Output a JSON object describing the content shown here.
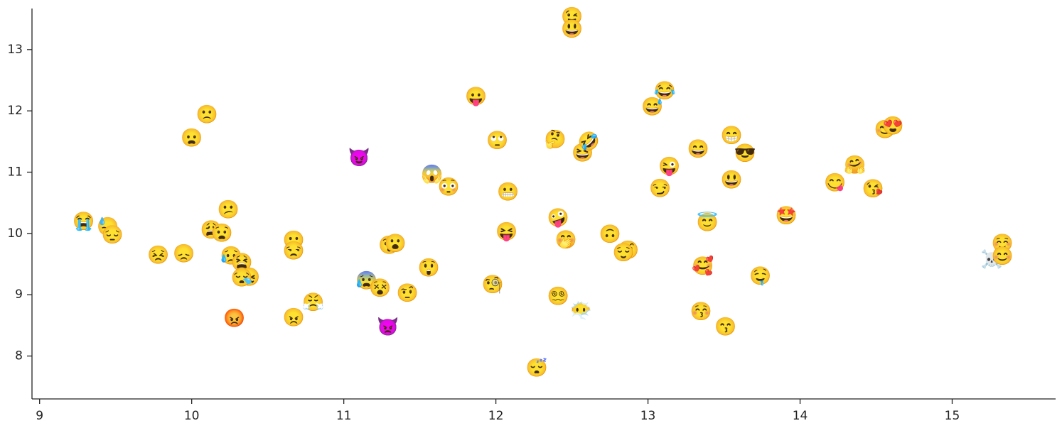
{
  "chart_data": {
    "type": "scatter",
    "title": "",
    "xlabel": "",
    "ylabel": "",
    "xlim": [
      8.95,
      15.68
    ],
    "ylim": [
      7.3,
      13.67
    ],
    "x_ticks": [
      9,
      10,
      11,
      12,
      13,
      14,
      15
    ],
    "y_ticks": [
      8,
      9,
      10,
      11,
      12,
      13
    ],
    "grid": false,
    "legend": "none",
    "axis_color": "#222222",
    "points": [
      {
        "x": 9.29,
        "y": 10.19,
        "emoji": "😭"
      },
      {
        "x": 9.45,
        "y": 10.1,
        "emoji": "😓"
      },
      {
        "x": 9.48,
        "y": 9.97,
        "emoji": "😔"
      },
      {
        "x": 9.78,
        "y": 9.64,
        "emoji": "😣"
      },
      {
        "x": 9.95,
        "y": 9.66,
        "emoji": "😞"
      },
      {
        "x": 10.0,
        "y": 11.55,
        "emoji": "😦"
      },
      {
        "x": 10.1,
        "y": 11.93,
        "emoji": "🙁"
      },
      {
        "x": 10.13,
        "y": 10.05,
        "emoji": "😩"
      },
      {
        "x": 10.2,
        "y": 10.0,
        "emoji": "😧"
      },
      {
        "x": 10.24,
        "y": 10.38,
        "emoji": "😕"
      },
      {
        "x": 10.26,
        "y": 9.63,
        "emoji": "😥"
      },
      {
        "x": 10.33,
        "y": 9.52,
        "emoji": "😫"
      },
      {
        "x": 10.38,
        "y": 9.28,
        "emoji": "😖"
      },
      {
        "x": 10.33,
        "y": 9.27,
        "emoji": "😪"
      },
      {
        "x": 10.28,
        "y": 8.61,
        "emoji": "😡"
      },
      {
        "x": 10.67,
        "y": 9.88,
        "emoji": "😶"
      },
      {
        "x": 10.67,
        "y": 9.71,
        "emoji": "😒"
      },
      {
        "x": 10.67,
        "y": 8.62,
        "emoji": "😠"
      },
      {
        "x": 10.8,
        "y": 8.87,
        "emoji": "😤"
      },
      {
        "x": 11.1,
        "y": 11.23,
        "emoji": "😈"
      },
      {
        "x": 11.15,
        "y": 9.22,
        "emoji": "😰"
      },
      {
        "x": 11.24,
        "y": 9.1,
        "emoji": "😵"
      },
      {
        "x": 11.29,
        "y": 8.47,
        "emoji": "👿"
      },
      {
        "x": 11.3,
        "y": 9.8,
        "emoji": "😯"
      },
      {
        "x": 11.34,
        "y": 9.83,
        "emoji": "😮"
      },
      {
        "x": 11.42,
        "y": 9.02,
        "emoji": "🤨"
      },
      {
        "x": 11.56,
        "y": 9.43,
        "emoji": "😲"
      },
      {
        "x": 11.58,
        "y": 10.96,
        "emoji": "😱"
      },
      {
        "x": 11.69,
        "y": 10.75,
        "emoji": "😳"
      },
      {
        "x": 11.87,
        "y": 12.23,
        "emoji": "😛"
      },
      {
        "x": 11.98,
        "y": 9.16,
        "emoji": "🧐"
      },
      {
        "x": 12.01,
        "y": 11.51,
        "emoji": "🙄"
      },
      {
        "x": 12.07,
        "y": 10.02,
        "emoji": "😝"
      },
      {
        "x": 12.08,
        "y": 10.67,
        "emoji": "😬"
      },
      {
        "x": 12.27,
        "y": 7.8,
        "emoji": "😴"
      },
      {
        "x": 12.39,
        "y": 11.53,
        "emoji": "🤔"
      },
      {
        "x": 12.41,
        "y": 10.25,
        "emoji": "🤪"
      },
      {
        "x": 12.41,
        "y": 8.97,
        "emoji": "😵‍💫"
      },
      {
        "x": 12.46,
        "y": 9.89,
        "emoji": "🤭"
      },
      {
        "x": 12.5,
        "y": 13.53,
        "emoji": "😉"
      },
      {
        "x": 12.5,
        "y": 13.33,
        "emoji": "😃"
      },
      {
        "x": 12.57,
        "y": 11.31,
        "emoji": "😆"
      },
      {
        "x": 12.61,
        "y": 11.49,
        "emoji": "🤣"
      },
      {
        "x": 12.56,
        "y": 8.73,
        "emoji": "😶‍🌫️"
      },
      {
        "x": 12.75,
        "y": 9.98,
        "emoji": "🙃"
      },
      {
        "x": 12.87,
        "y": 9.72,
        "emoji": "🤨"
      },
      {
        "x": 12.84,
        "y": 9.68,
        "emoji": "😌"
      },
      {
        "x": 13.03,
        "y": 12.06,
        "emoji": "😅"
      },
      {
        "x": 13.11,
        "y": 12.32,
        "emoji": "😂"
      },
      {
        "x": 13.08,
        "y": 10.73,
        "emoji": "😏"
      },
      {
        "x": 13.14,
        "y": 11.09,
        "emoji": "😜"
      },
      {
        "x": 13.33,
        "y": 11.37,
        "emoji": "😄"
      },
      {
        "x": 13.36,
        "y": 9.46,
        "emoji": "🥰"
      },
      {
        "x": 13.35,
        "y": 8.72,
        "emoji": "😚"
      },
      {
        "x": 13.39,
        "y": 10.17,
        "emoji": "😇"
      },
      {
        "x": 13.51,
        "y": 8.47,
        "emoji": "😙"
      },
      {
        "x": 13.55,
        "y": 11.59,
        "emoji": "😁"
      },
      {
        "x": 13.55,
        "y": 10.87,
        "emoji": "😃"
      },
      {
        "x": 13.64,
        "y": 11.3,
        "emoji": "😎"
      },
      {
        "x": 13.74,
        "y": 9.3,
        "emoji": "🤤"
      },
      {
        "x": 13.91,
        "y": 10.28,
        "emoji": "🤩"
      },
      {
        "x": 14.23,
        "y": 10.82,
        "emoji": "😋"
      },
      {
        "x": 14.36,
        "y": 11.11,
        "emoji": "🤗"
      },
      {
        "x": 14.48,
        "y": 10.72,
        "emoji": "😘"
      },
      {
        "x": 14.56,
        "y": 11.69,
        "emoji": "😊"
      },
      {
        "x": 14.61,
        "y": 11.75,
        "emoji": "😍"
      },
      {
        "x": 15.26,
        "y": 9.57,
        "emoji": "☠️"
      },
      {
        "x": 15.33,
        "y": 9.83,
        "emoji": "☺️"
      },
      {
        "x": 15.33,
        "y": 9.62,
        "emoji": "😊"
      }
    ]
  }
}
